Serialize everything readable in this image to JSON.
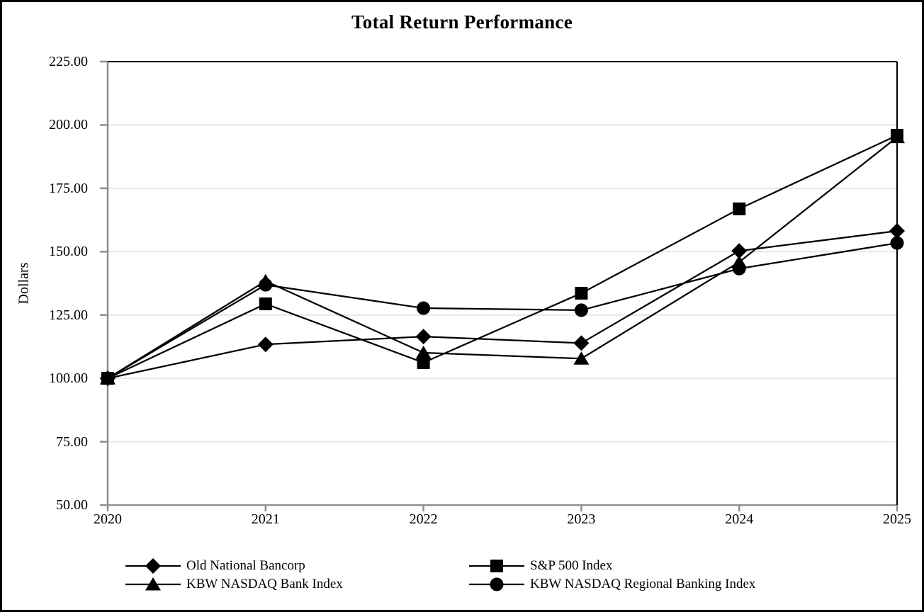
{
  "chart_data": {
    "type": "line",
    "title": "Total Return Performance",
    "ylabel": "Dollars",
    "xlabel": "",
    "categories": [
      "2020",
      "2021",
      "2022",
      "2023",
      "2024",
      "2025"
    ],
    "ylim": [
      50,
      225
    ],
    "ytick_values": [
      225,
      200,
      175,
      150,
      125,
      100,
      75,
      50
    ],
    "ytick_labels": [
      "225.00",
      "200.00",
      "175.00",
      "150.00",
      "125.00",
      "100.00",
      "75.00",
      "50.00"
    ],
    "grid": true,
    "legend_position": "bottom",
    "series": [
      {
        "name": "Old National Bancorp",
        "marker": "diamond",
        "values": [
          100.0,
          113.4,
          116.5,
          113.9,
          150.3,
          158.2
        ]
      },
      {
        "name": "S&P 500 Index",
        "marker": "square",
        "values": [
          100.0,
          129.4,
          106.2,
          133.6,
          166.9,
          195.9
        ]
      },
      {
        "name": "KBW NASDAQ Bank Index",
        "marker": "triangle",
        "values": [
          100.0,
          138.4,
          110.1,
          107.8,
          145.9,
          195.2
        ]
      },
      {
        "name": "KBW NASDAQ Regional Banking Index",
        "marker": "circle",
        "values": [
          100.0,
          136.9,
          127.7,
          126.9,
          143.3,
          153.4
        ]
      }
    ],
    "colors": {
      "series_line": "#000000",
      "marker_fill": "#000000",
      "gridline": "#e6e6e6",
      "axis": "#8f8f8f",
      "plot_border": "#000000",
      "frame_border": "#000000",
      "background": "#ffffff"
    }
  }
}
